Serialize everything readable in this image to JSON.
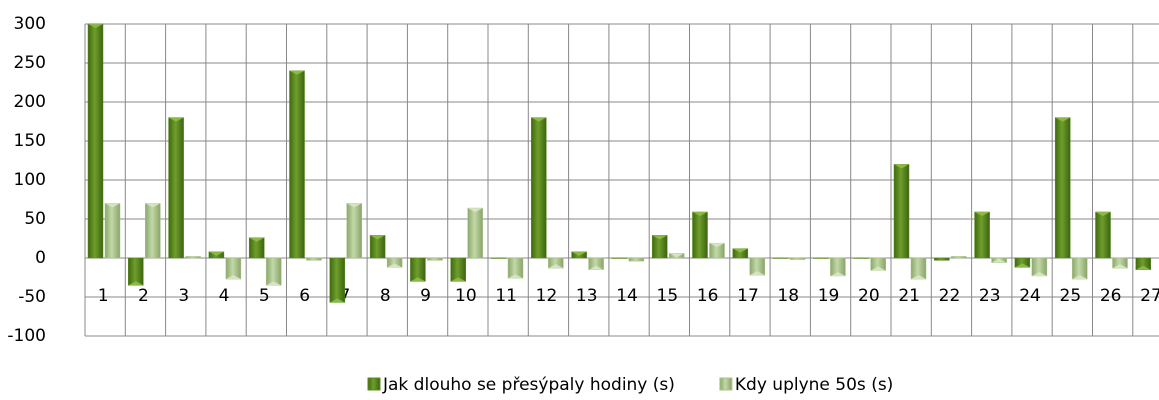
{
  "chart_data": {
    "type": "bar",
    "categories": [
      "1",
      "2",
      "3",
      "4",
      "5",
      "6",
      "7",
      "8",
      "9",
      "10",
      "11",
      "12",
      "13",
      "14",
      "15",
      "16",
      "17",
      "18",
      "19",
      "20",
      "21",
      "22",
      "23",
      "24",
      "25",
      "26",
      "27"
    ],
    "series": [
      {
        "name": "Jak dlouho se přesýpaly hodiny (s)",
        "color": "#5a8a1e",
        "values": [
          300,
          -35,
          180,
          8,
          26,
          240,
          -57,
          29,
          -30,
          -30,
          0,
          180,
          8,
          0,
          29,
          59,
          12,
          0,
          0,
          0,
          120,
          -3,
          59,
          -12,
          180,
          59,
          -15
        ]
      },
      {
        "name": "Kdy uplyne 50s (s)",
        "color": "#a9c48a",
        "values": [
          70,
          70,
          2,
          -27,
          -35,
          -3,
          70,
          -12,
          -3,
          64,
          -26,
          -13,
          -15,
          -4,
          6,
          19,
          -22,
          -2,
          -23,
          -16,
          -27,
          2,
          -6,
          -23,
          -27,
          -13,
          null
        ]
      }
    ],
    "ylim": [
      -100,
      300
    ],
    "yticks": [
      -100,
      -50,
      0,
      50,
      100,
      150,
      200,
      250,
      300
    ],
    "grid": true
  }
}
